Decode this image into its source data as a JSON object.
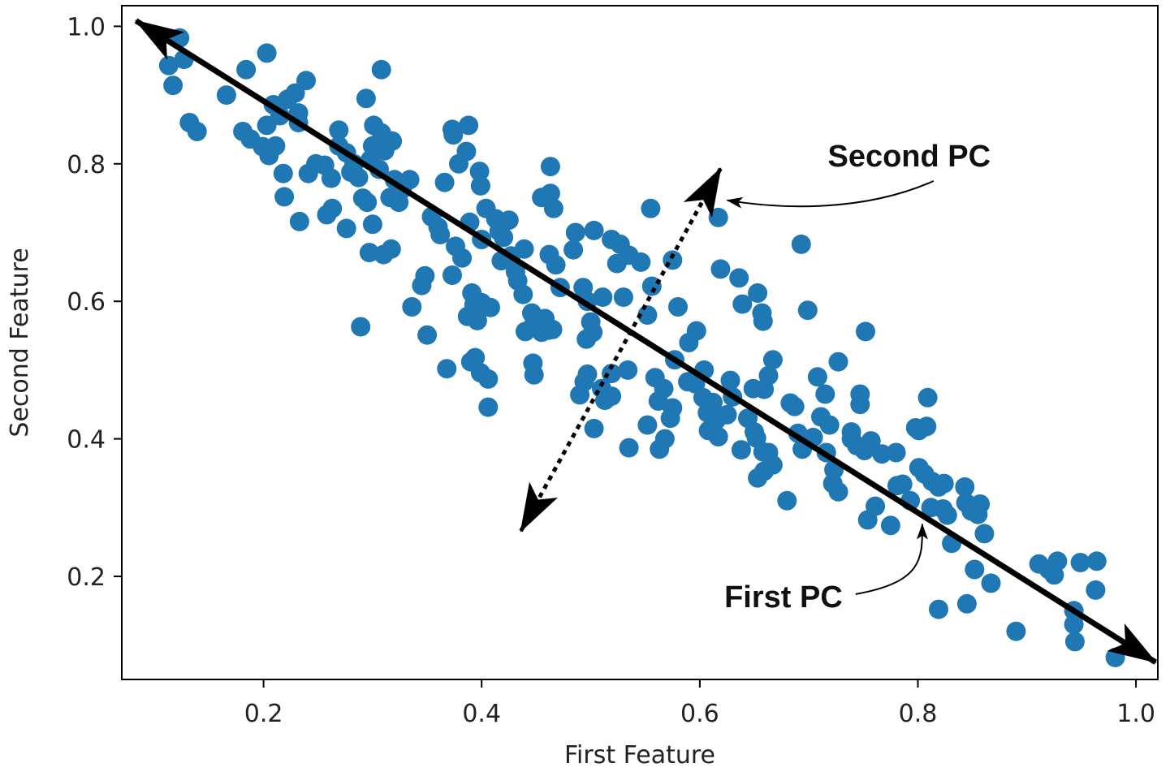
{
  "chart_data": {
    "type": "scatter",
    "title": "",
    "xlabel": "First Feature",
    "ylabel": "Second Feature",
    "xlim": [
      0.07,
      1.02
    ],
    "ylim": [
      0.05,
      1.03
    ],
    "xticks": [
      0.2,
      0.4,
      0.6,
      0.8,
      1.0
    ],
    "xtick_labels": [
      "0.2",
      "0.4",
      "0.6",
      "0.8",
      "1.0"
    ],
    "yticks": [
      0.2,
      0.4,
      0.6,
      0.8,
      1.0
    ],
    "ytick_labels": [
      "0.2",
      "0.4",
      "0.6",
      "0.8",
      "1.0"
    ],
    "grid": false,
    "marker_color": "#1f77b4",
    "points": [
      [
        0.123,
        0.983
      ],
      [
        0.113,
        0.943
      ],
      [
        0.127,
        0.952
      ],
      [
        0.117,
        0.914
      ],
      [
        0.132,
        0.86
      ],
      [
        0.139,
        0.847
      ],
      [
        0.166,
        0.9
      ],
      [
        0.184,
        0.937
      ],
      [
        0.203,
        0.961
      ],
      [
        0.181,
        0.847
      ],
      [
        0.188,
        0.836
      ],
      [
        0.199,
        0.825
      ],
      [
        0.205,
        0.812
      ],
      [
        0.211,
        0.826
      ],
      [
        0.203,
        0.856
      ],
      [
        0.215,
        0.87
      ],
      [
        0.209,
        0.886
      ],
      [
        0.222,
        0.894
      ],
      [
        0.229,
        0.903
      ],
      [
        0.239,
        0.921
      ],
      [
        0.232,
        0.874
      ],
      [
        0.232,
        0.86
      ],
      [
        0.218,
        0.786
      ],
      [
        0.219,
        0.752
      ],
      [
        0.233,
        0.716
      ],
      [
        0.241,
        0.786
      ],
      [
        0.248,
        0.8
      ],
      [
        0.258,
        0.726
      ],
      [
        0.263,
        0.735
      ],
      [
        0.256,
        0.798
      ],
      [
        0.262,
        0.779
      ],
      [
        0.269,
        0.826
      ],
      [
        0.269,
        0.849
      ],
      [
        0.276,
        0.816
      ],
      [
        0.283,
        0.8
      ],
      [
        0.28,
        0.788
      ],
      [
        0.287,
        0.78
      ],
      [
        0.291,
        0.75
      ],
      [
        0.276,
        0.706
      ],
      [
        0.295,
        0.744
      ],
      [
        0.3,
        0.712
      ],
      [
        0.297,
        0.671
      ],
      [
        0.31,
        0.668
      ],
      [
        0.317,
        0.676
      ],
      [
        0.294,
        0.895
      ],
      [
        0.308,
        0.937
      ],
      [
        0.301,
        0.856
      ],
      [
        0.308,
        0.845
      ],
      [
        0.318,
        0.833
      ],
      [
        0.3,
        0.826
      ],
      [
        0.311,
        0.819
      ],
      [
        0.298,
        0.806
      ],
      [
        0.306,
        0.792
      ],
      [
        0.32,
        0.777
      ],
      [
        0.327,
        0.763
      ],
      [
        0.334,
        0.777
      ],
      [
        0.316,
        0.751
      ],
      [
        0.324,
        0.744
      ],
      [
        0.289,
        0.563
      ],
      [
        0.336,
        0.592
      ],
      [
        0.345,
        0.623
      ],
      [
        0.348,
        0.637
      ],
      [
        0.35,
        0.551
      ],
      [
        0.354,
        0.723
      ],
      [
        0.36,
        0.708
      ],
      [
        0.362,
        0.697
      ],
      [
        0.366,
        0.773
      ],
      [
        0.373,
        0.85
      ],
      [
        0.374,
        0.842
      ],
      [
        0.388,
        0.856
      ],
      [
        0.379,
        0.8
      ],
      [
        0.386,
        0.818
      ],
      [
        0.376,
        0.68
      ],
      [
        0.382,
        0.663
      ],
      [
        0.373,
        0.638
      ],
      [
        0.389,
        0.715
      ],
      [
        0.398,
        0.789
      ],
      [
        0.399,
        0.768
      ],
      [
        0.4,
        0.69
      ],
      [
        0.404,
        0.735
      ],
      [
        0.391,
        0.612
      ],
      [
        0.393,
        0.595
      ],
      [
        0.387,
        0.578
      ],
      [
        0.4,
        0.598
      ],
      [
        0.396,
        0.572
      ],
      [
        0.408,
        0.591
      ],
      [
        0.368,
        0.502
      ],
      [
        0.39,
        0.512
      ],
      [
        0.394,
        0.518
      ],
      [
        0.399,
        0.496
      ],
      [
        0.406,
        0.487
      ],
      [
        0.406,
        0.446
      ],
      [
        0.413,
        0.72
      ],
      [
        0.416,
        0.702
      ],
      [
        0.42,
        0.693
      ],
      [
        0.425,
        0.718
      ],
      [
        0.418,
        0.659
      ],
      [
        0.427,
        0.666
      ],
      [
        0.431,
        0.643
      ],
      [
        0.433,
        0.63
      ],
      [
        0.439,
        0.676
      ],
      [
        0.438,
        0.61
      ],
      [
        0.446,
        0.583
      ],
      [
        0.44,
        0.556
      ],
      [
        0.448,
        0.568
      ],
      [
        0.455,
        0.555
      ],
      [
        0.447,
        0.51
      ],
      [
        0.448,
        0.493
      ],
      [
        0.458,
        0.575
      ],
      [
        0.461,
        0.558
      ],
      [
        0.465,
        0.559
      ],
      [
        0.455,
        0.751
      ],
      [
        0.463,
        0.757
      ],
      [
        0.466,
        0.735
      ],
      [
        0.463,
        0.796
      ],
      [
        0.462,
        0.668
      ],
      [
        0.468,
        0.653
      ],
      [
        0.472,
        0.62
      ],
      [
        0.484,
        0.675
      ],
      [
        0.486,
        0.7
      ],
      [
        0.493,
        0.62
      ],
      [
        0.497,
        0.6
      ],
      [
        0.503,
        0.703
      ],
      [
        0.511,
        0.606
      ],
      [
        0.519,
        0.69
      ],
      [
        0.524,
        0.655
      ],
      [
        0.527,
        0.683
      ],
      [
        0.535,
        0.667
      ],
      [
        0.53,
        0.606
      ],
      [
        0.546,
        0.657
      ],
      [
        0.552,
        0.58
      ],
      [
        0.556,
        0.622
      ],
      [
        0.555,
        0.735
      ],
      [
        0.496,
        0.545
      ],
      [
        0.5,
        0.57
      ],
      [
        0.502,
        0.555
      ],
      [
        0.494,
        0.483
      ],
      [
        0.497,
        0.494
      ],
      [
        0.49,
        0.464
      ],
      [
        0.51,
        0.473
      ],
      [
        0.513,
        0.456
      ],
      [
        0.519,
        0.462
      ],
      [
        0.519,
        0.495
      ],
      [
        0.534,
        0.5
      ],
      [
        0.503,
        0.415
      ],
      [
        0.535,
        0.387
      ],
      [
        0.552,
        0.42
      ],
      [
        0.559,
        0.489
      ],
      [
        0.562,
        0.455
      ],
      [
        0.567,
        0.473
      ],
      [
        0.563,
        0.385
      ],
      [
        0.568,
        0.4
      ],
      [
        0.573,
        0.43
      ],
      [
        0.575,
        0.445
      ],
      [
        0.577,
        0.515
      ],
      [
        0.575,
        0.66
      ],
      [
        0.58,
        0.592
      ],
      [
        0.589,
        0.483
      ],
      [
        0.59,
        0.54
      ],
      [
        0.596,
        0.48
      ],
      [
        0.597,
        0.557
      ],
      [
        0.603,
        0.46
      ],
      [
        0.607,
        0.438
      ],
      [
        0.612,
        0.453
      ],
      [
        0.604,
        0.5
      ],
      [
        0.608,
        0.412
      ],
      [
        0.617,
        0.403
      ],
      [
        0.615,
        0.427
      ],
      [
        0.625,
        0.435
      ],
      [
        0.628,
        0.485
      ],
      [
        0.63,
        0.461
      ],
      [
        0.617,
        0.722
      ],
      [
        0.619,
        0.647
      ],
      [
        0.636,
        0.634
      ],
      [
        0.639,
        0.596
      ],
      [
        0.653,
        0.612
      ],
      [
        0.657,
        0.583
      ],
      [
        0.658,
        0.571
      ],
      [
        0.649,
        0.473
      ],
      [
        0.659,
        0.472
      ],
      [
        0.663,
        0.492
      ],
      [
        0.667,
        0.515
      ],
      [
        0.638,
        0.384
      ],
      [
        0.644,
        0.43
      ],
      [
        0.65,
        0.41
      ],
      [
        0.652,
        0.401
      ],
      [
        0.658,
        0.381
      ],
      [
        0.659,
        0.353
      ],
      [
        0.663,
        0.38
      ],
      [
        0.653,
        0.343
      ],
      [
        0.667,
        0.362
      ],
      [
        0.68,
        0.31
      ],
      [
        0.683,
        0.452
      ],
      [
        0.687,
        0.447
      ],
      [
        0.69,
        0.408
      ],
      [
        0.693,
        0.683
      ],
      [
        0.699,
        0.587
      ],
      [
        0.694,
        0.385
      ],
      [
        0.704,
        0.402
      ],
      [
        0.708,
        0.49
      ],
      [
        0.715,
        0.465
      ],
      [
        0.711,
        0.432
      ],
      [
        0.719,
        0.42
      ],
      [
        0.716,
        0.38
      ],
      [
        0.722,
        0.335
      ],
      [
        0.723,
        0.355
      ],
      [
        0.727,
        0.323
      ],
      [
        0.727,
        0.512
      ],
      [
        0.739,
        0.41
      ],
      [
        0.739,
        0.4
      ],
      [
        0.744,
        0.39
      ],
      [
        0.747,
        0.45
      ],
      [
        0.747,
        0.465
      ],
      [
        0.752,
        0.556
      ],
      [
        0.751,
        0.383
      ],
      [
        0.757,
        0.397
      ],
      [
        0.754,
        0.282
      ],
      [
        0.761,
        0.302
      ],
      [
        0.767,
        0.378
      ],
      [
        0.78,
        0.38
      ],
      [
        0.775,
        0.274
      ],
      [
        0.781,
        0.332
      ],
      [
        0.786,
        0.334
      ],
      [
        0.793,
        0.31
      ],
      [
        0.798,
        0.416
      ],
      [
        0.801,
        0.412
      ],
      [
        0.808,
        0.418
      ],
      [
        0.809,
        0.46
      ],
      [
        0.801,
        0.358
      ],
      [
        0.806,
        0.349
      ],
      [
        0.813,
        0.338
      ],
      [
        0.819,
        0.33
      ],
      [
        0.824,
        0.335
      ],
      [
        0.812,
        0.3
      ],
      [
        0.823,
        0.298
      ],
      [
        0.827,
        0.289
      ],
      [
        0.819,
        0.152
      ],
      [
        0.831,
        0.248
      ],
      [
        0.843,
        0.33
      ],
      [
        0.844,
        0.307
      ],
      [
        0.849,
        0.295
      ],
      [
        0.855,
        0.29
      ],
      [
        0.857,
        0.305
      ],
      [
        0.861,
        0.262
      ],
      [
        0.845,
        0.16
      ],
      [
        0.852,
        0.21
      ],
      [
        0.867,
        0.19
      ],
      [
        0.89,
        0.12
      ],
      [
        0.911,
        0.218
      ],
      [
        0.92,
        0.21
      ],
      [
        0.925,
        0.202
      ],
      [
        0.928,
        0.222
      ],
      [
        0.943,
        0.15
      ],
      [
        0.943,
        0.13
      ],
      [
        0.944,
        0.105
      ],
      [
        0.949,
        0.22
      ],
      [
        0.963,
        0.18
      ],
      [
        0.964,
        0.222
      ],
      [
        0.981,
        0.082
      ]
    ],
    "arrows": [
      {
        "name": "First PC",
        "style": "solid",
        "from": [
          0.291,
          0.793
        ],
        "to_a": [
          0.083,
          1.008
        ],
        "to_b": [
          1.018,
          0.075
        ]
      },
      {
        "name": "Second PC",
        "style": "dotted",
        "from": [
          0.533,
          0.531
        ],
        "to_a": [
          0.619,
          0.793
        ],
        "to_b": [
          0.436,
          0.266
        ]
      }
    ],
    "annotations": [
      {
        "text": "Second PC",
        "pos": [
          0.792,
          0.808
        ],
        "target": [
          0.625,
          0.747
        ],
        "anchor": "middle"
      },
      {
        "text": "First PC",
        "pos": [
          0.731,
          0.167
        ],
        "target": [
          0.804,
          0.276
        ],
        "anchor": "end"
      }
    ]
  }
}
